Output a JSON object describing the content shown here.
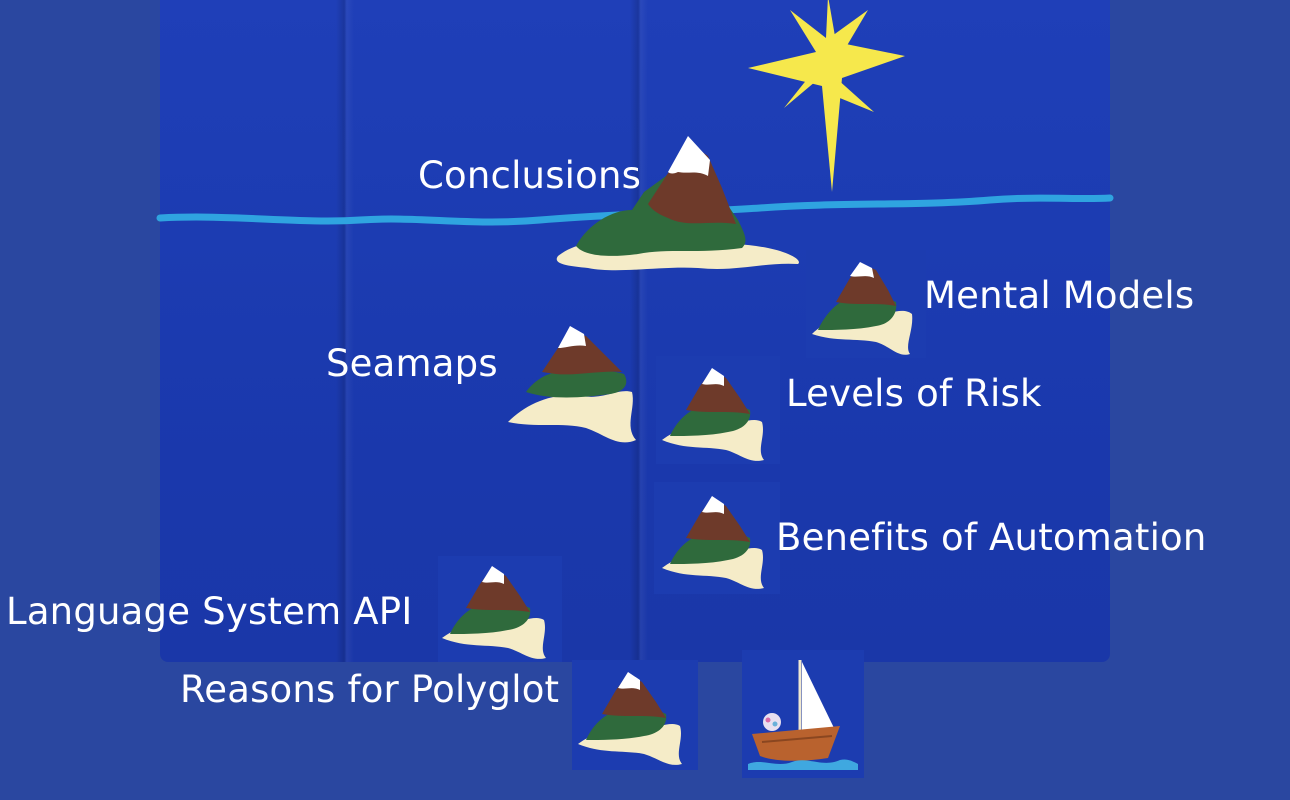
{
  "background_color": "#2a47a0",
  "felt_color": "#1d3db4",
  "horizon_color": "#2fa4e0",
  "star_color": "#f6e84c",
  "island_colors": {
    "snow": "#ffffff",
    "rock": "#6e3a2a",
    "forest": "#2f6a3c",
    "sand": "#f5ecc8"
  },
  "labels": {
    "conclusions": "Conclusions",
    "mental_models": "Mental Models",
    "seamaps": "Seamaps",
    "levels_of_risk": "Levels of Risk",
    "benefits_of_automation": "Benefits of Automation",
    "language_system_api": "Language System API",
    "reasons_for_polyglot": "Reasons for Polyglot"
  },
  "icons": {
    "star": "north-star-icon",
    "island": "island-icon",
    "boat": "sailboat-icon"
  }
}
